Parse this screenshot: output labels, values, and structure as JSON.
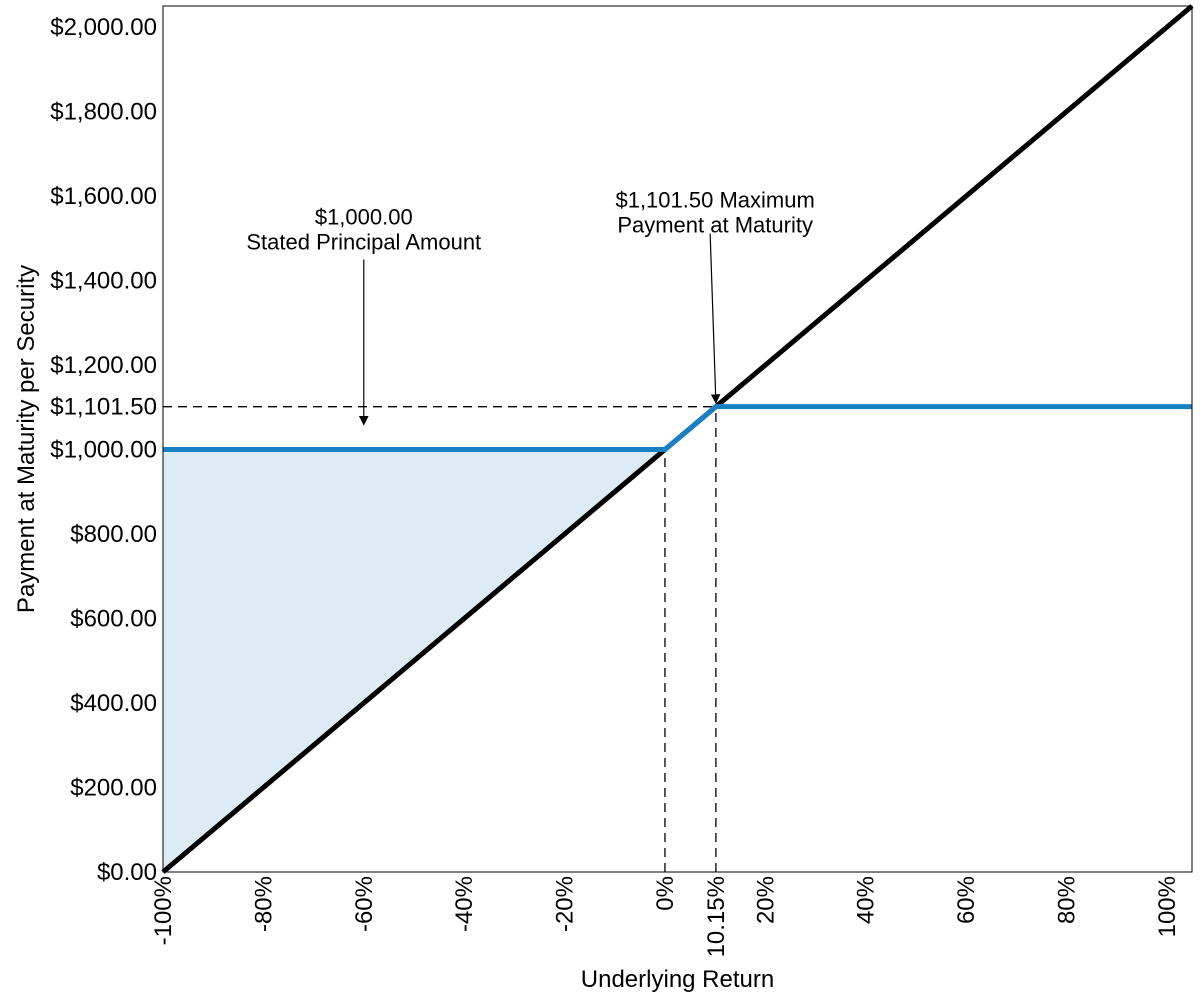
{
  "chart_data": {
    "type": "line",
    "xlabel": "Underlying Return",
    "ylabel": "Payment at Maturity per Security",
    "xlim": [
      -100,
      105
    ],
    "ylim": [
      0,
      2050
    ],
    "x_ticks": [
      {
        "value": -100,
        "label": "-100%"
      },
      {
        "value": -80,
        "label": "-80%"
      },
      {
        "value": -60,
        "label": "-60%"
      },
      {
        "value": -40,
        "label": "-40%"
      },
      {
        "value": -20,
        "label": "-20%"
      },
      {
        "value": 0,
        "label": "0%"
      },
      {
        "value": 10.15,
        "label": "10.15%"
      },
      {
        "value": 20,
        "label": "20%"
      },
      {
        "value": 40,
        "label": "40%"
      },
      {
        "value": 60,
        "label": "60%"
      },
      {
        "value": 80,
        "label": "80%"
      },
      {
        "value": 100,
        "label": "100%"
      }
    ],
    "y_ticks": [
      {
        "value": 0,
        "label": "$0.00"
      },
      {
        "value": 200,
        "label": "$200.00"
      },
      {
        "value": 400,
        "label": "$400.00"
      },
      {
        "value": 600,
        "label": "$600.00"
      },
      {
        "value": 800,
        "label": "$800.00"
      },
      {
        "value": 1000,
        "label": "$1,000.00"
      },
      {
        "value": 1101.5,
        "label": "$1,101.50"
      },
      {
        "value": 1200,
        "label": "$1,200.00"
      },
      {
        "value": 1400,
        "label": "$1,400.00"
      },
      {
        "value": 1600,
        "label": "$1,600.00"
      },
      {
        "value": 1800,
        "label": "$1,800.00"
      },
      {
        "value": 2000,
        "label": "$2,000.00"
      }
    ],
    "series": [
      {
        "color": "#000000",
        "x": [
          -100,
          105
        ],
        "y": [
          0,
          2050
        ]
      },
      {
        "color": "#1a80c4",
        "x": [
          -100,
          0,
          10.15,
          105
        ],
        "y": [
          1000,
          1000,
          1101.5,
          1101.5
        ]
      }
    ],
    "shaded_region": {
      "color": "#ddebf5",
      "x": [
        -100,
        0,
        -100
      ],
      "y": [
        0,
        1000,
        1000
      ]
    },
    "reference_lines": {
      "horizontal": [
        1101.5
      ],
      "vertical": [
        0,
        10.15
      ]
    },
    "annotations": [
      {
        "lines": [
          "$1,000.00",
          "Stated Principal Amount"
        ],
        "text_at": [
          -60,
          1360
        ],
        "arrow_to": [
          -60,
          1050
        ]
      },
      {
        "lines": [
          "$1,101.50 Maximum",
          "Payment at Maturity"
        ],
        "text_at": [
          10,
          1400
        ],
        "arrow_to": [
          10.15,
          1101.5
        ]
      }
    ]
  }
}
